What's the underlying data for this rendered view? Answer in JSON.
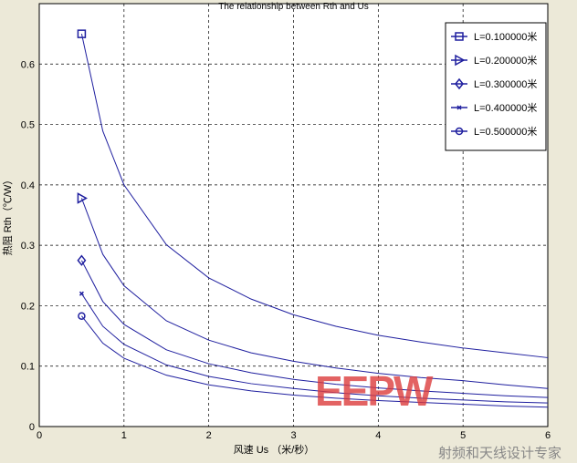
{
  "chart_data": {
    "type": "line",
    "title": "The relationship between Rth and Us",
    "xlabel": "风速 Us （米/秒）",
    "ylabel": "热阻 Rth（℃/W）",
    "xlim": [
      0,
      6
    ],
    "ylim": [
      0,
      0.7
    ],
    "xticks": [
      "0",
      "1",
      "2",
      "3",
      "4",
      "5",
      "6"
    ],
    "yticks": [
      "0",
      "0.1",
      "0.2",
      "0.3",
      "0.4",
      "0.5",
      "0.6"
    ],
    "grid": true,
    "legend": "top-right",
    "color": "#1f1f9f",
    "x": [
      0.5,
      0.75,
      1,
      1.5,
      2,
      2.5,
      3,
      3.5,
      4,
      4.5,
      5,
      5.5,
      6
    ],
    "series": [
      {
        "name": "L=0.100000米",
        "marker": "square",
        "values": [
          0.65,
          0.489,
          0.4,
          0.301,
          0.246,
          0.211,
          0.185,
          0.166,
          0.151,
          0.14,
          0.13,
          0.122,
          0.114
        ]
      },
      {
        "name": "L=0.200000米",
        "marker": "triangle-right",
        "values": [
          0.378,
          0.285,
          0.233,
          0.175,
          0.143,
          0.122,
          0.108,
          0.097,
          0.088,
          0.081,
          0.076,
          0.069,
          0.063
        ]
      },
      {
        "name": "L=0.300000米",
        "marker": "diamond",
        "values": [
          0.275,
          0.207,
          0.169,
          0.127,
          0.104,
          0.089,
          0.078,
          0.07,
          0.064,
          0.059,
          0.055,
          0.051,
          0.048
        ]
      },
      {
        "name": "L=0.400000米",
        "marker": "x",
        "values": [
          0.22,
          0.166,
          0.136,
          0.102,
          0.083,
          0.071,
          0.063,
          0.056,
          0.051,
          0.047,
          0.044,
          0.041,
          0.039
        ]
      },
      {
        "name": "L=0.500000米",
        "marker": "circle",
        "values": [
          0.183,
          0.138,
          0.113,
          0.085,
          0.069,
          0.059,
          0.052,
          0.047,
          0.043,
          0.04,
          0.037,
          0.034,
          0.032
        ]
      }
    ]
  },
  "watermark": {
    "logo": "EEPW",
    "sub": "射频和天线设计专家"
  }
}
